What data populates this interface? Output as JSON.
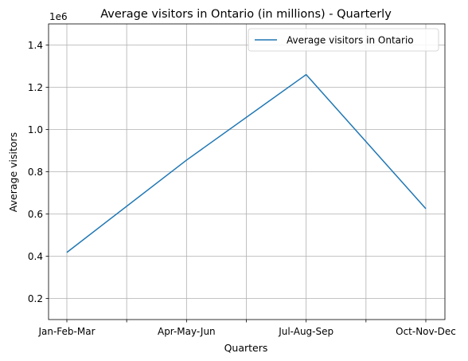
{
  "chart_data": {
    "type": "line",
    "title": "Average visitors in Ontario (in millions) - Quarterly",
    "xlabel": "Quarters",
    "ylabel": "Average visitors",
    "offset_text": "1e6",
    "categories": [
      "Jan-Feb-Mar",
      "Apr-May-Jun",
      "Jul-Aug-Sep",
      "Oct-Nov-Dec"
    ],
    "series": [
      {
        "name": "Average visitors in Ontario",
        "color": "#1f77b4",
        "values": [
          0.418,
          0.855,
          1.26,
          0.625
        ]
      }
    ],
    "ylim": [
      0.1,
      1.5
    ],
    "yticks": [
      0.2,
      0.4,
      0.6,
      0.8,
      1.0,
      1.2,
      1.4
    ],
    "ytick_labels": [
      "0.2",
      "0.4",
      "0.6",
      "0.8",
      "1.0",
      "1.2",
      "1.4"
    ],
    "x_minor_ticks": true,
    "grid": true,
    "legend_position": "top-right"
  }
}
